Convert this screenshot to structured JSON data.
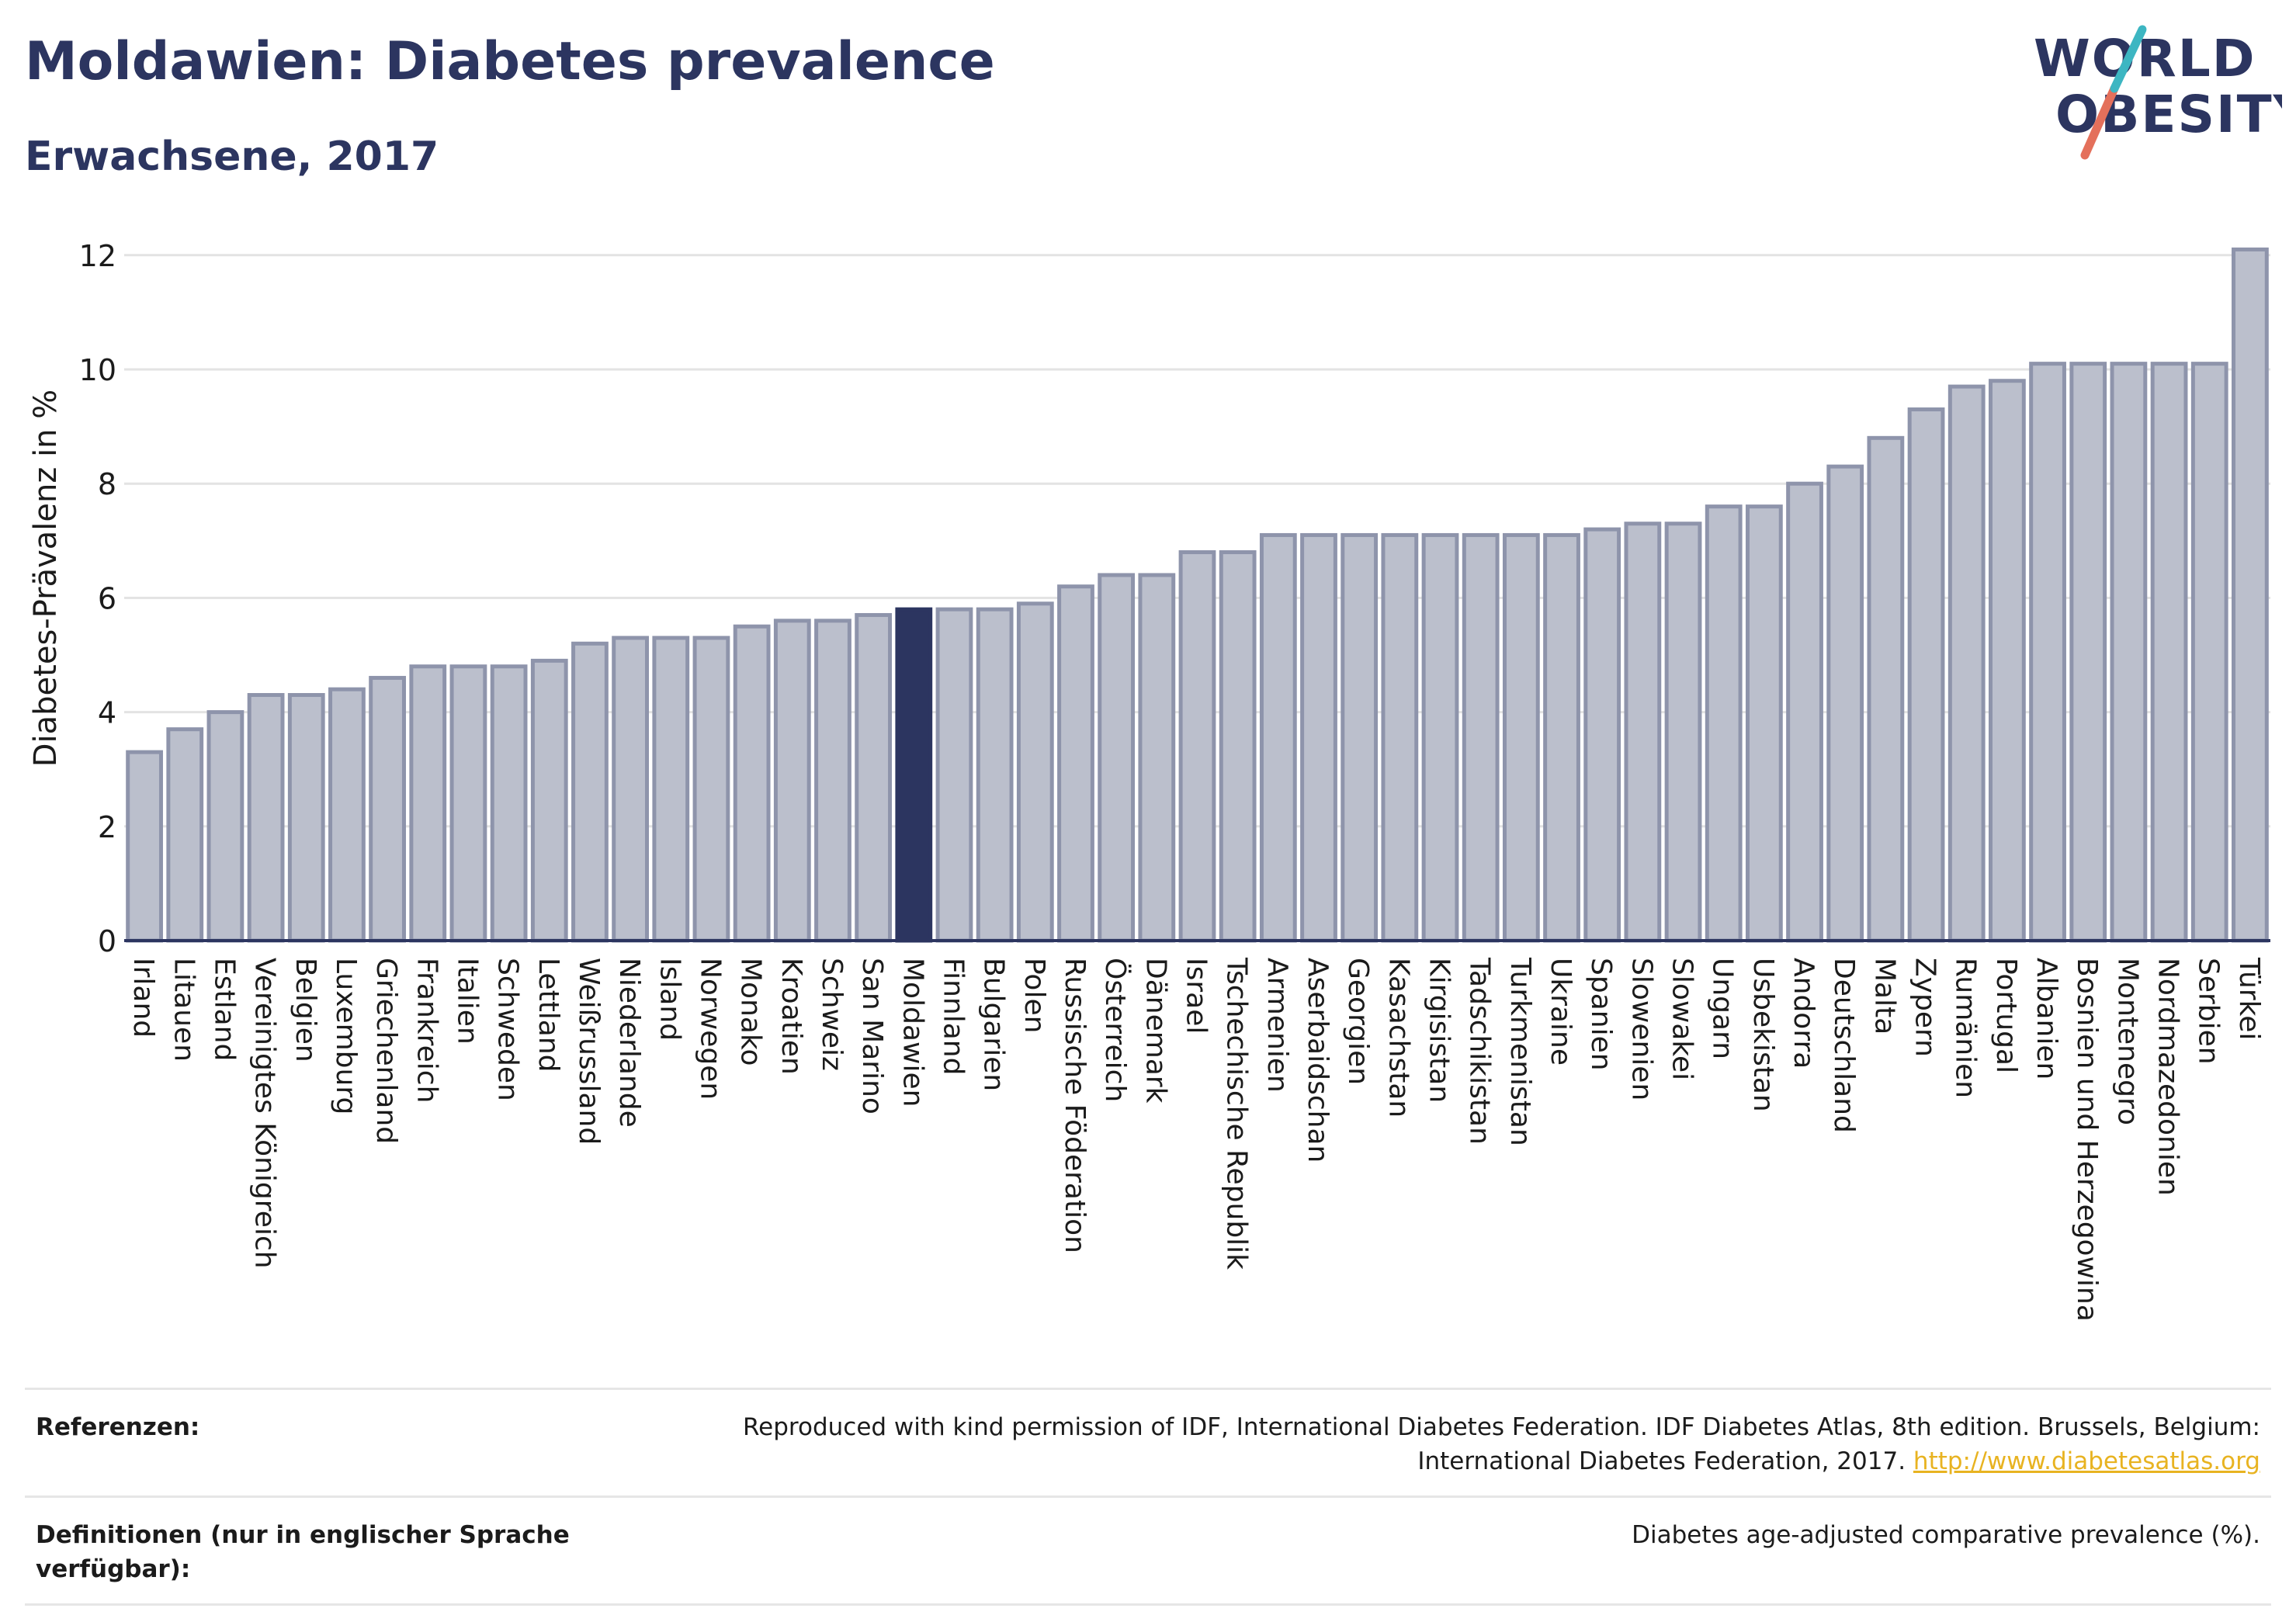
{
  "header": {
    "title": "Moldawien: Diabetes prevalence",
    "subtitle": "Erwachsene, 2017"
  },
  "logo": {
    "line1": "WORLD",
    "line2": "OBESITY"
  },
  "chart_data": {
    "type": "bar",
    "ylabel": "Diabetes-Prävalenz in %",
    "ylim": [
      0,
      12.6
    ],
    "yticks": [
      0,
      2,
      4,
      6,
      8,
      10,
      12
    ],
    "grid": true,
    "highlight": "Moldawien",
    "colors": {
      "bar": "#bbbfcc",
      "bar_edge": "#8e94ab",
      "highlight": "#2c3560"
    },
    "categories": [
      "Irland",
      "Litauen",
      "Estland",
      "Vereinigtes Königreich",
      "Belgien",
      "Luxemburg",
      "Griechenland",
      "Frankreich",
      "Italien",
      "Schweden",
      "Lettland",
      "Weißrussland",
      "Niederlande",
      "Island",
      "Norwegen",
      "Monako",
      "Kroatien",
      "Schweiz",
      "San Marino",
      "Moldawien",
      "Finnland",
      "Bulgarien",
      "Polen",
      "Russische Föderation",
      "Österreich",
      "Dänemark",
      "Israel",
      "Tschechische Republik",
      "Armenien",
      "Aserbaidschan",
      "Georgien",
      "Kasachstan",
      "Kirgisistan",
      "Tadschikistan",
      "Turkmenistan",
      "Ukraine",
      "Spanien",
      "Slowenien",
      "Slowakei",
      "Ungarn",
      "Usbekistan",
      "Andorra",
      "Deutschland",
      "Malta",
      "Zypern",
      "Rumänien",
      "Portugal",
      "Albanien",
      "Bosnien und Herzegowina",
      "Montenegro",
      "Nordmazedonien",
      "Serbien",
      "Türkei"
    ],
    "values": [
      3.3,
      3.7,
      4.0,
      4.3,
      4.3,
      4.4,
      4.6,
      4.8,
      4.8,
      4.8,
      4.9,
      5.2,
      5.3,
      5.3,
      5.3,
      5.5,
      5.6,
      5.6,
      5.7,
      5.8,
      5.8,
      5.8,
      5.9,
      6.2,
      6.4,
      6.4,
      6.8,
      6.8,
      7.1,
      7.1,
      7.1,
      7.1,
      7.1,
      7.1,
      7.1,
      7.1,
      7.2,
      7.3,
      7.3,
      7.6,
      7.6,
      8.0,
      8.3,
      8.8,
      9.3,
      9.7,
      9.8,
      10.1,
      10.1,
      10.1,
      10.1,
      10.1,
      12.1
    ]
  },
  "footer": {
    "references_label": "Referenzen:",
    "references_text": "Reproduced with kind permission of IDF, International Diabetes Federation. IDF Diabetes Atlas, 8th edition. Brussels, Belgium: International Diabetes Federation, 2017.",
    "references_link": "http://www.diabetesatlas.org",
    "definitions_label": "Definitionen (nur in englischer Sprache verfügbar):",
    "definitions_text": "Diabetes age-adjusted comparative prevalence (%)."
  }
}
